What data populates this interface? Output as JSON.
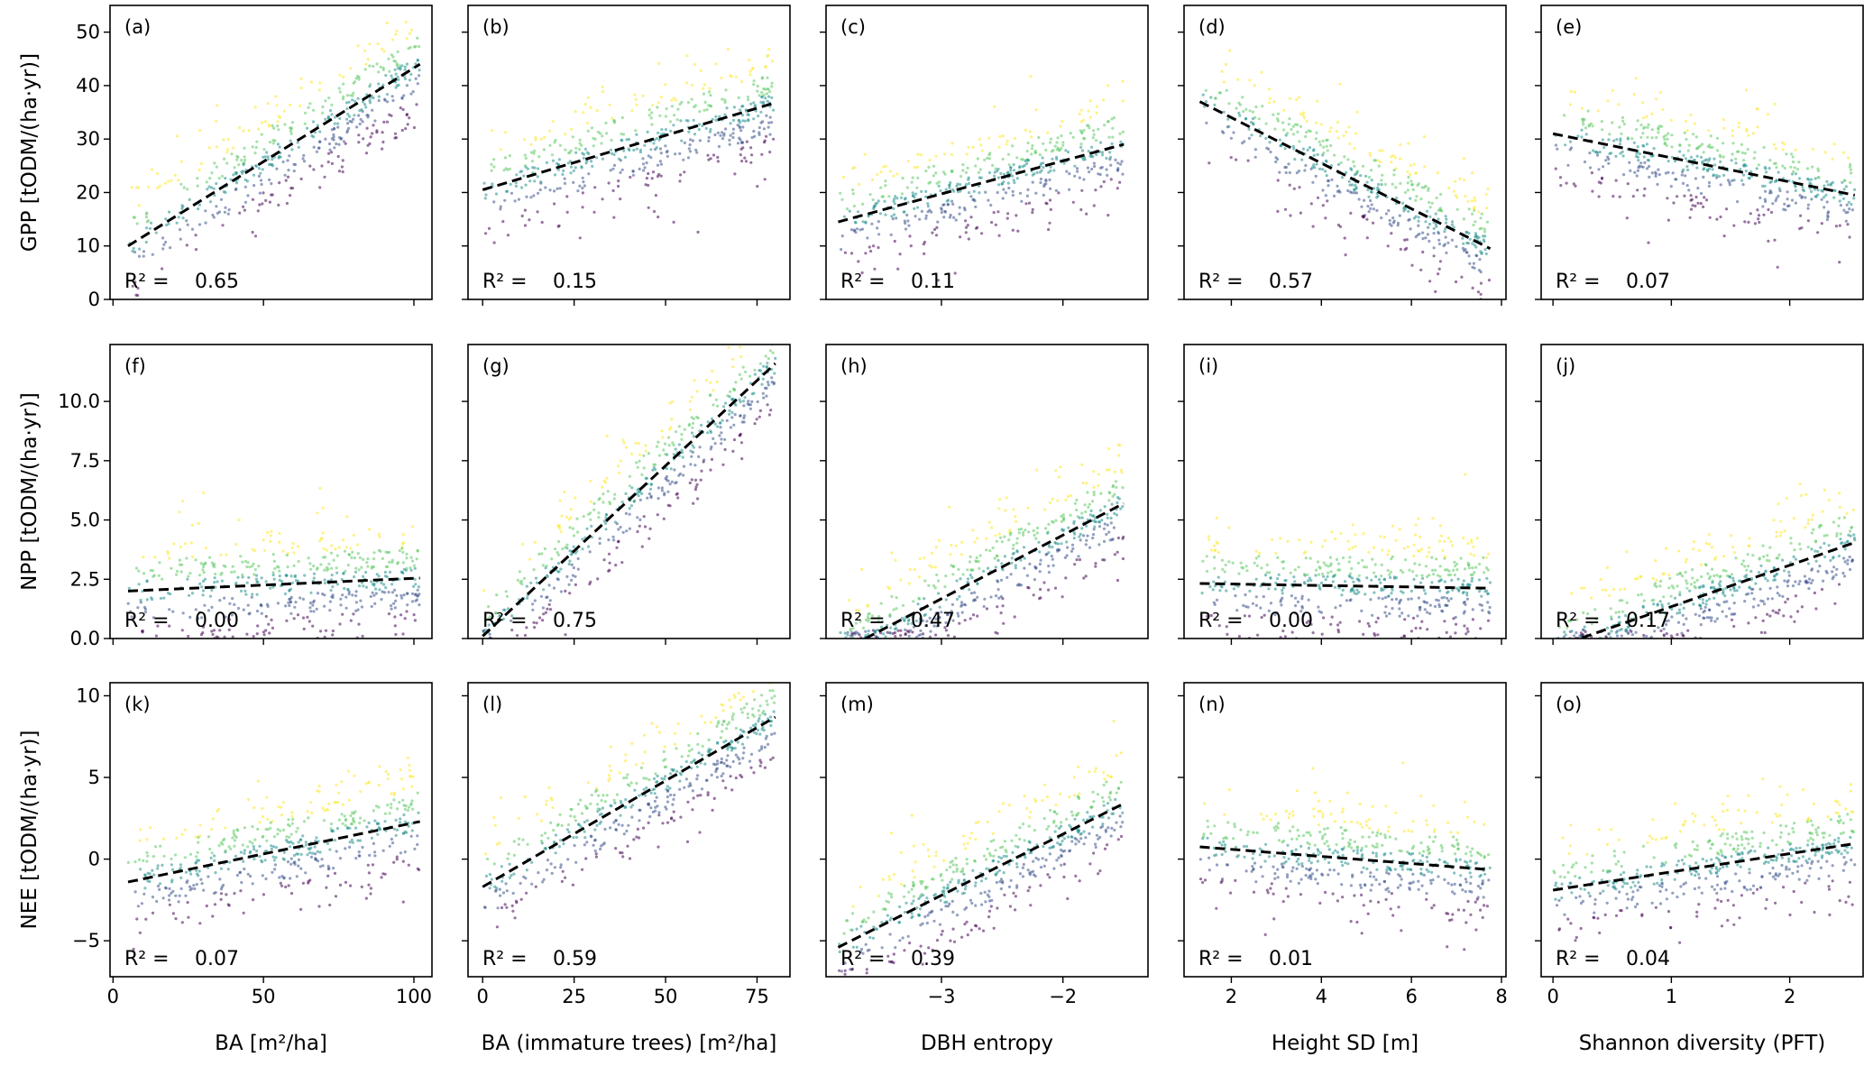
{
  "figure": {
    "colormap": [
      "#440154",
      "#3b528b",
      "#21908d",
      "#5dc863",
      "#fde725"
    ],
    "regression_line_color": "#000000",
    "r2_prefix": "R² ="
  },
  "rows": [
    {
      "ylabel": "GPP",
      "ylabel_unit": "[tODM/(ha·yr)]",
      "ylim": [
        0,
        55
      ],
      "yticks": [
        0,
        10,
        20,
        30,
        40,
        50
      ],
      "tick_labels": [
        "0",
        "10",
        "20",
        "30",
        "40",
        "50"
      ]
    },
    {
      "ylabel": "NPP",
      "ylabel_unit": "[tODM/(ha·yr)]",
      "ylim": [
        0,
        12.4
      ],
      "yticks": [
        0,
        2.5,
        5,
        7.5,
        10
      ],
      "tick_labels": [
        "0.0",
        "2.5",
        "5.0",
        "7.5",
        "10.0"
      ]
    },
    {
      "ylabel": "NEE",
      "ylabel_unit": "[tODM/(ha·yr)]",
      "ylim": [
        -7.2,
        10.8
      ],
      "yticks": [
        -5,
        0,
        5,
        10
      ],
      "tick_labels": [
        "−5",
        "0",
        "5",
        "10"
      ]
    }
  ],
  "columns": [
    {
      "xlabel": "BA [m²/ha]",
      "xlim": [
        -1,
        106
      ],
      "xticks": [
        0,
        50,
        100
      ],
      "tick_labels": [
        "0",
        "50",
        "100"
      ]
    },
    {
      "xlabel": "BA (immature trees) [m²/ha]",
      "xlim": [
        -4,
        84
      ],
      "xticks": [
        0,
        25,
        50,
        75
      ],
      "tick_labels": [
        "0",
        "25",
        "50",
        "75"
      ]
    },
    {
      "xlabel": "DBH entropy",
      "xlim": [
        -3.95,
        -1.3
      ],
      "xticks": [
        -3,
        -2
      ],
      "tick_labels": [
        "−3",
        "−2"
      ]
    },
    {
      "xlabel": "Height SD [m]",
      "xlim": [
        0.95,
        8.1
      ],
      "xticks": [
        2,
        4,
        6,
        8
      ],
      "tick_labels": [
        "2",
        "4",
        "6",
        "8"
      ]
    },
    {
      "xlabel": "Shannon diversity (PFT)",
      "xlim": [
        -0.1,
        2.62
      ],
      "xticks": [
        0,
        1,
        2
      ],
      "tick_labels": [
        "0",
        "1",
        "2"
      ]
    }
  ],
  "chart_data": {
    "type": "scatter",
    "layout": "3 rows x 5 columns grid of scatter panels with linear regression lines",
    "panels": [
      {
        "id": "a",
        "label": "(a)",
        "row": 0,
        "col": 0,
        "y": "GPP",
        "x": "BA",
        "r2": "0.65",
        "fit_line": {
          "x": [
            5,
            102
          ],
          "y": [
            10,
            44
          ]
        }
      },
      {
        "id": "b",
        "label": "(b)",
        "row": 0,
        "col": 1,
        "y": "GPP",
        "x": "BA (immature trees)",
        "r2": "0.15",
        "fit_line": {
          "x": [
            0,
            80
          ],
          "y": [
            20.5,
            36.8
          ]
        }
      },
      {
        "id": "c",
        "label": "(c)",
        "row": 0,
        "col": 2,
        "y": "GPP",
        "x": "DBH entropy",
        "r2": "0.11",
        "fit_line": {
          "x": [
            -3.85,
            -1.5
          ],
          "y": [
            14.5,
            29
          ]
        }
      },
      {
        "id": "d",
        "label": "(d)",
        "row": 0,
        "col": 3,
        "y": "GPP",
        "x": "Height SD",
        "r2": "0.57",
        "fit_line": {
          "x": [
            1.3,
            7.75
          ],
          "y": [
            37,
            9.5
          ]
        }
      },
      {
        "id": "e",
        "label": "(e)",
        "row": 0,
        "col": 4,
        "y": "GPP",
        "x": "Shannon diversity (PFT)",
        "r2": "0.07",
        "fit_line": {
          "x": [
            0,
            2.55
          ],
          "y": [
            31,
            19.5
          ]
        }
      },
      {
        "id": "f",
        "label": "(f)",
        "row": 1,
        "col": 0,
        "y": "NPP",
        "x": "BA",
        "r2": "0.00",
        "fit_line": {
          "x": [
            5,
            102
          ],
          "y": [
            2.0,
            2.55
          ]
        }
      },
      {
        "id": "g",
        "label": "(g)",
        "row": 1,
        "col": 1,
        "y": "NPP",
        "x": "BA (immature trees)",
        "r2": "0.75",
        "fit_line": {
          "x": [
            0,
            80
          ],
          "y": [
            0.1,
            11.6
          ]
        }
      },
      {
        "id": "h",
        "label": "(h)",
        "row": 1,
        "col": 2,
        "y": "NPP",
        "x": "DBH entropy",
        "r2": "0.47",
        "fit_line": {
          "x": [
            -3.85,
            -1.5
          ],
          "y": [
            -0.6,
            5.7
          ]
        }
      },
      {
        "id": "i",
        "label": "(i)",
        "row": 1,
        "col": 3,
        "y": "NPP",
        "x": "Height SD",
        "r2": "0.00",
        "fit_line": {
          "x": [
            1.3,
            7.75
          ],
          "y": [
            2.32,
            2.12
          ]
        }
      },
      {
        "id": "j",
        "label": "(j)",
        "row": 1,
        "col": 4,
        "y": "NPP",
        "x": "Shannon diversity (PFT)",
        "r2": "0.17",
        "fit_line": {
          "x": [
            0,
            2.55
          ],
          "y": [
            -0.4,
            4.05
          ]
        }
      },
      {
        "id": "k",
        "label": "(k)",
        "row": 2,
        "col": 0,
        "y": "NEE",
        "x": "BA",
        "r2": "0.07",
        "fit_line": {
          "x": [
            5,
            102
          ],
          "y": [
            -1.4,
            2.3
          ]
        }
      },
      {
        "id": "l",
        "label": "(l)",
        "row": 2,
        "col": 1,
        "y": "NEE",
        "x": "BA (immature trees)",
        "r2": "0.59",
        "fit_line": {
          "x": [
            0,
            80
          ],
          "y": [
            -1.7,
            8.7
          ]
        }
      },
      {
        "id": "m",
        "label": "(m)",
        "row": 2,
        "col": 2,
        "y": "NEE",
        "x": "DBH entropy",
        "r2": "0.39",
        "fit_line": {
          "x": [
            -3.85,
            -1.5
          ],
          "y": [
            -5.4,
            3.4
          ]
        }
      },
      {
        "id": "n",
        "label": "(n)",
        "row": 2,
        "col": 3,
        "y": "NEE",
        "x": "Height SD",
        "r2": "0.01",
        "fit_line": {
          "x": [
            1.3,
            7.75
          ],
          "y": [
            0.75,
            -0.65
          ]
        }
      },
      {
        "id": "o",
        "label": "(o)",
        "row": 2,
        "col": 4,
        "y": "NEE",
        "x": "Shannon diversity (PFT)",
        "r2": "0.04",
        "fit_line": {
          "x": [
            0,
            2.55
          ],
          "y": [
            -1.9,
            0.95
          ]
        }
      }
    ]
  }
}
